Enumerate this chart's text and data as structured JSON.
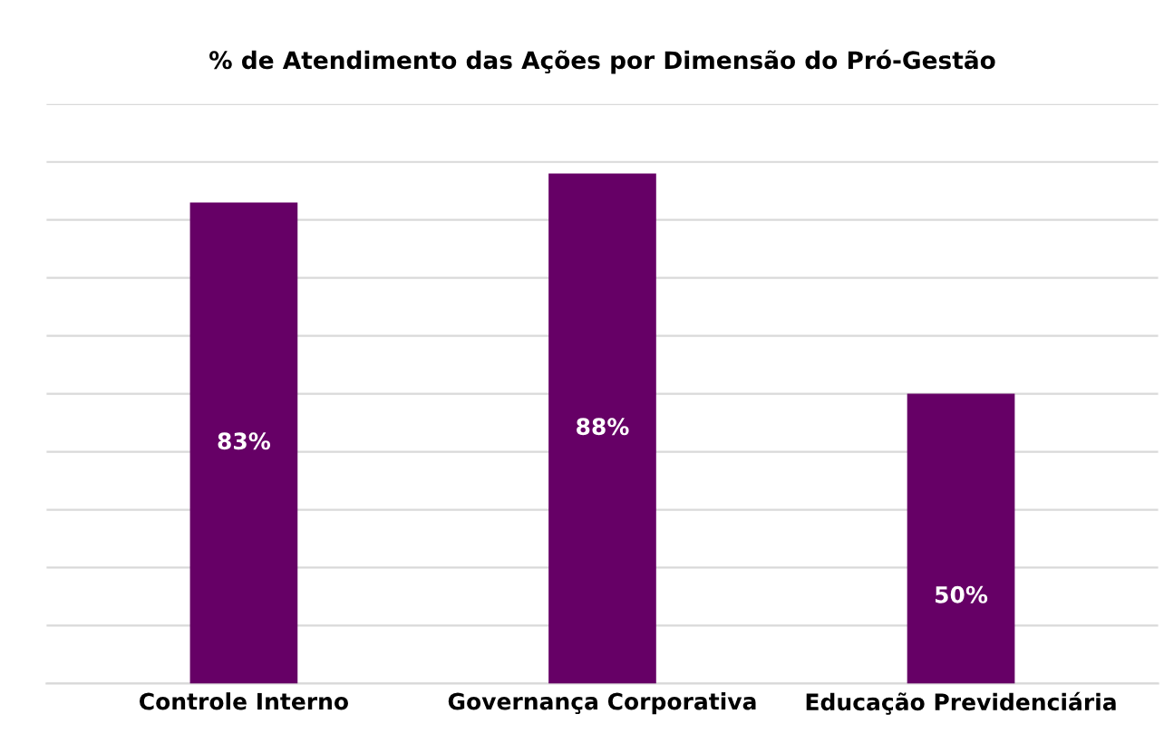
{
  "chart_data": {
    "type": "bar",
    "title": "% de Atendimento das Ações por Dimensão do Pró-Gestão",
    "categories": [
      "Controle Interno",
      "Governança Corporativa",
      "Educação Previdenciária"
    ],
    "values": [
      83,
      88,
      50
    ],
    "value_labels": [
      "83%",
      "88%",
      "50%"
    ],
    "color": "#660066",
    "ylim": [
      0,
      100
    ],
    "yticks": [
      {
        "value": 0,
        "label": null
      },
      {
        "value": 10,
        "label": null
      },
      {
        "value": 20,
        "label": null
      },
      {
        "value": 30,
        "label": null
      },
      {
        "value": 40,
        "label": null
      },
      {
        "value": 50,
        "label": null
      },
      {
        "value": 60,
        "label": null
      },
      {
        "value": 70,
        "label": null
      },
      {
        "value": 80,
        "label": null
      },
      {
        "value": 90,
        "label": null
      },
      {
        "value": 100,
        "label": null
      }
    ],
    "tick_labels": "x",
    "grid": "y",
    "legend": false
  }
}
